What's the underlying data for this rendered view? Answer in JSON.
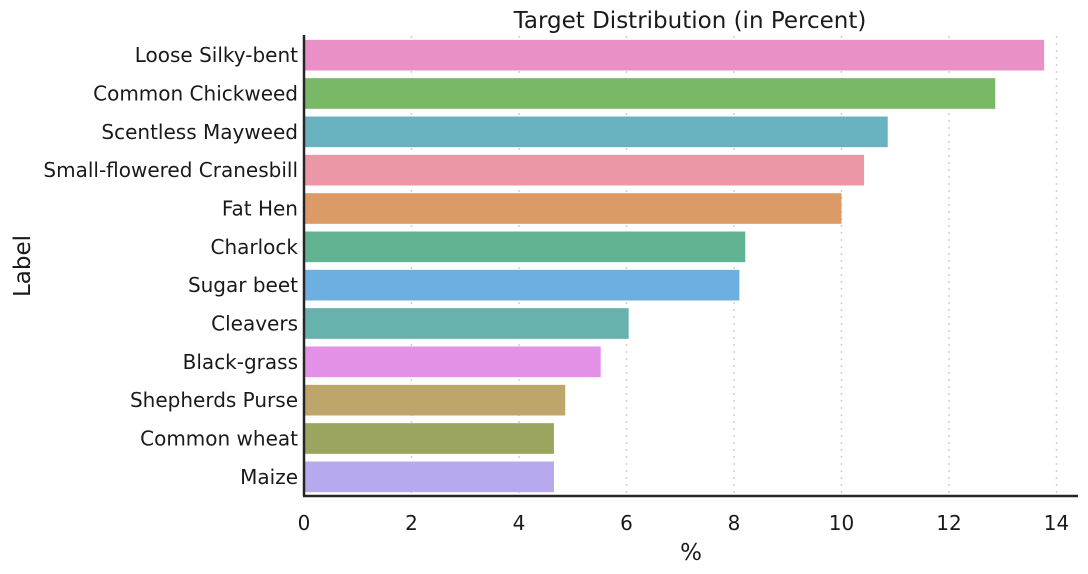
{
  "chart_data": {
    "type": "bar",
    "orientation": "horizontal",
    "title": "Target Distribution (in Percent)",
    "xlabel": "%",
    "ylabel": "Label",
    "xlim": [
      0,
      14.4
    ],
    "xticks": [
      0,
      2,
      4,
      6,
      8,
      10,
      12,
      14
    ],
    "grid": "x dotted",
    "categories": [
      "Loose Silky-bent",
      "Common Chickweed",
      "Scentless Mayweed",
      "Small-flowered Cranesbill",
      "Fat Hen",
      "Charlock",
      "Sugar beet",
      "Cleavers",
      "Black-grass",
      "Shepherds Purse",
      "Common wheat",
      "Maize"
    ],
    "values": [
      13.77,
      12.86,
      10.86,
      10.42,
      10.0,
      8.21,
      8.1,
      6.04,
      5.52,
      4.86,
      4.65,
      4.65
    ],
    "colors": [
      "#e990c7",
      "#78b867",
      "#69b3c0",
      "#eb97a6",
      "#dc9b66",
      "#62b391",
      "#6eafe2",
      "#67b2ad",
      "#e291e7",
      "#bea569",
      "#9ba55f",
      "#b8a8ed"
    ]
  }
}
